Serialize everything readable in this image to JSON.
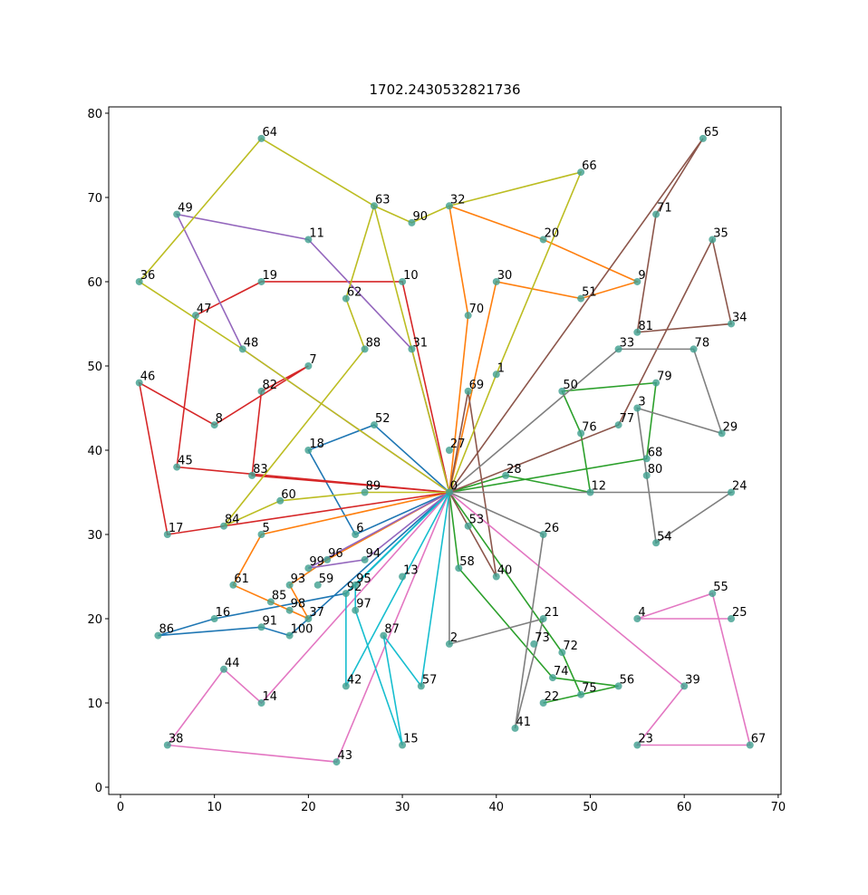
{
  "chart_data": {
    "type": "route",
    "title": "1702.2430532821736",
    "labels": [
      0,
      1,
      2,
      3,
      4,
      5,
      6,
      7,
      8,
      9,
      10,
      11,
      12,
      13,
      14,
      15,
      16,
      17,
      18,
      19,
      20,
      21,
      22,
      23,
      24,
      25,
      26,
      27,
      28,
      29,
      30,
      31,
      32,
      33,
      34,
      35,
      36,
      37,
      38,
      39,
      40,
      41,
      42,
      43,
      44,
      45,
      46,
      47,
      48,
      49,
      50,
      51,
      52,
      53,
      54,
      55,
      56,
      57,
      58,
      59,
      60,
      61,
      62,
      63,
      64,
      65,
      66,
      67,
      68,
      69,
      70,
      71,
      72,
      73,
      74,
      75,
      76,
      77,
      78,
      79,
      80,
      81,
      82,
      83,
      84,
      85,
      86,
      87,
      88,
      89,
      90,
      91,
      92,
      93,
      94,
      95,
      96,
      97,
      98,
      99,
      100
    ],
    "x": [
      35,
      40,
      35,
      55,
      55,
      15,
      25,
      20,
      10,
      55,
      30,
      20,
      50,
      30,
      15,
      30,
      10,
      5,
      20,
      15,
      45,
      45,
      45,
      55,
      65,
      65,
      45,
      35,
      41,
      64,
      40,
      31,
      35,
      53,
      65,
      63,
      2,
      20,
      5,
      60,
      40,
      42,
      24,
      23,
      11,
      6,
      2,
      8,
      13,
      6,
      47,
      49,
      27,
      37,
      57,
      63,
      53,
      32,
      36,
      21,
      17,
      12,
      24,
      27,
      15,
      62,
      49,
      67,
      56,
      37,
      37,
      57,
      47,
      44,
      46,
      49,
      49,
      53,
      61,
      57,
      56,
      55,
      15,
      14,
      11,
      16,
      4,
      28,
      26,
      26,
      31,
      15,
      24,
      18,
      26,
      25,
      22,
      25,
      18,
      20,
      18
    ],
    "y": [
      35,
      49,
      17,
      45,
      20,
      30,
      30,
      50,
      43,
      60,
      60,
      65,
      35,
      25,
      10,
      5,
      20,
      30,
      40,
      60,
      65,
      20,
      10,
      5,
      35,
      20,
      30,
      40,
      37,
      42,
      60,
      52,
      69,
      52,
      55,
      65,
      60,
      20,
      5,
      12,
      25,
      7,
      12,
      3,
      14,
      38,
      48,
      56,
      52,
      68,
      47,
      58,
      43,
      31,
      29,
      23,
      12,
      12,
      26,
      24,
      34,
      24,
      58,
      69,
      77,
      77,
      73,
      5,
      39,
      47,
      56,
      68,
      16,
      17,
      13,
      11,
      42,
      43,
      52,
      48,
      37,
      54,
      47,
      37,
      31,
      22,
      18,
      18,
      52,
      35,
      67,
      19,
      23,
      24,
      27,
      24,
      27,
      21,
      21,
      26,
      18
    ],
    "node_color": "#3f9f8f",
    "series": [
      {
        "color": "#1f77b4",
        "route": [
          0,
          52,
          18,
          6,
          0
        ]
      },
      {
        "color": "#1f77b4",
        "route": [
          0,
          92,
          16,
          86,
          91,
          100,
          0
        ]
      },
      {
        "color": "#ff7f0e",
        "route": [
          0,
          70,
          32,
          20,
          9,
          51,
          30,
          0
        ]
      },
      {
        "color": "#ff7f0e",
        "route": [
          0,
          96,
          93,
          37,
          85,
          61,
          5,
          0
        ]
      },
      {
        "color": "#2ca02c",
        "route": [
          0,
          68,
          79,
          50,
          76,
          12,
          28,
          0
        ]
      },
      {
        "color": "#2ca02c",
        "route": [
          0,
          58,
          74,
          56,
          22,
          75,
          72,
          0
        ]
      },
      {
        "color": "#d62728",
        "route": [
          0,
          45,
          47,
          19,
          10,
          0
        ]
      },
      {
        "color": "#d62728",
        "route": [
          0,
          83,
          82,
          7,
          8,
          46,
          17,
          0
        ]
      },
      {
        "color": "#9467bd",
        "route": [
          0,
          31,
          11,
          49,
          48,
          0
        ]
      },
      {
        "color": "#9467bd",
        "route": [
          0,
          99,
          94,
          0
        ]
      },
      {
        "color": "#8c564b",
        "route": [
          0,
          65,
          71,
          81,
          34,
          35,
          77,
          0
        ]
      },
      {
        "color": "#8c564b",
        "route": [
          0,
          69,
          40,
          0
        ]
      },
      {
        "color": "#e377c2",
        "route": [
          0,
          39,
          23,
          67,
          55,
          4,
          25
        ]
      },
      {
        "color": "#e377c2",
        "route": [
          0,
          14,
          44,
          38,
          43,
          0
        ]
      },
      {
        "color": "#7f7f7f",
        "route": [
          0,
          26,
          41,
          21,
          2,
          0
        ]
      },
      {
        "color": "#7f7f7f",
        "route": [
          0,
          33,
          78,
          29,
          3,
          54,
          24,
          0
        ]
      },
      {
        "color": "#bcbd22",
        "route": [
          0,
          48,
          36,
          64,
          63,
          90,
          32,
          66,
          1,
          0
        ]
      },
      {
        "color": "#bcbd22",
        "route": [
          0,
          63,
          62,
          88,
          84,
          60,
          89,
          0
        ]
      },
      {
        "color": "#17becf",
        "route": [
          0,
          95,
          97,
          15,
          87,
          57,
          0
        ]
      },
      {
        "color": "#17becf",
        "route": [
          0,
          92,
          42,
          0
        ]
      }
    ],
    "xlim": [
      -1.25,
      70.3
    ],
    "ylim": [
      -0.86,
      80.75
    ],
    "xticks": [
      0,
      10,
      20,
      30,
      40,
      50,
      60,
      70
    ],
    "yticks": [
      0,
      10,
      20,
      30,
      40,
      50,
      60,
      70,
      80
    ]
  }
}
